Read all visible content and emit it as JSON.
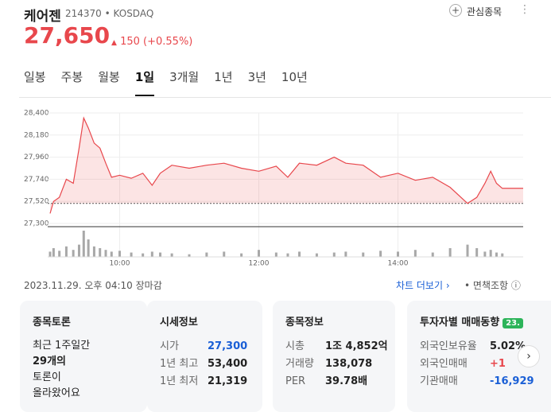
{
  "header": {
    "name": "케어젠",
    "code": "214370",
    "market": "KOSDAQ",
    "watch": "관심종목"
  },
  "price": {
    "current": "27,650",
    "change": "150",
    "change_pct": "(+0.55%)"
  },
  "tabs": [
    "일봉",
    "주봉",
    "월봉",
    "1일",
    "3개월",
    "1년",
    "3년",
    "10년"
  ],
  "active_tab": 3,
  "chart": {
    "type": "line",
    "x": [
      "09:00",
      "09:03",
      "09:08",
      "09:14",
      "09:20",
      "09:25",
      "09:29",
      "09:33",
      "09:38",
      "09:43",
      "09:48",
      "09:53",
      "10:00",
      "10:10",
      "10:20",
      "10:28",
      "10:35",
      "10:45",
      "11:00",
      "11:15",
      "11:30",
      "11:45",
      "12:00",
      "12:15",
      "12:25",
      "12:35",
      "12:50",
      "13:05",
      "13:15",
      "13:30",
      "13:45",
      "14:00",
      "14:15",
      "14:30",
      "14:45",
      "15:00",
      "15:08",
      "15:15",
      "15:20",
      "15:25",
      "15:30"
    ],
    "values": [
      27400,
      27520,
      27560,
      27740,
      27700,
      28050,
      28350,
      28250,
      28100,
      28050,
      27900,
      27760,
      27780,
      27750,
      27800,
      27680,
      27800,
      27880,
      27850,
      27880,
      27900,
      27850,
      27820,
      27870,
      27760,
      27900,
      27880,
      27960,
      27900,
      27880,
      27760,
      27800,
      27730,
      27760,
      27660,
      27500,
      27560,
      27700,
      27820,
      27700,
      27650
    ],
    "volume": [
      3000,
      5000,
      3500,
      6000,
      4000,
      7000,
      15000,
      10000,
      6000,
      5000,
      4000,
      3000,
      3500,
      2500,
      2000,
      3000,
      2500,
      2000,
      1500,
      2500,
      3000,
      2000,
      4000,
      2500,
      2000,
      3000,
      2000,
      2500,
      3000,
      2500,
      3500,
      3000,
      4000,
      2500,
      5000,
      7000,
      5000,
      3000,
      4000,
      2500,
      2000
    ],
    "reference": 27500,
    "color": "#e8474c",
    "xlim": [
      "09:00",
      "15:48"
    ],
    "xticks": [
      "10:00",
      "12:00",
      "14:00"
    ],
    "ylim": [
      27300,
      28400
    ],
    "yticks": [
      {
        "value": 27300,
        "label": "27,300"
      },
      {
        "value": 27520,
        "label": "27,520"
      },
      {
        "value": 27740,
        "label": "27,740"
      },
      {
        "value": 27960,
        "label": "27,960"
      },
      {
        "value": 28180,
        "label": "28,180"
      },
      {
        "value": 28400,
        "label": "28,400"
      }
    ],
    "grid": true
  },
  "status": {
    "time": "2023.11.29. 오후 04:10 장마감",
    "more": "차트 더보기",
    "disclaimer": "면책조항"
  },
  "cards": [
    {
      "title": "종목토론",
      "lines": [
        "최근 1주일간",
        "29개의",
        "토론이",
        "올라왔어요"
      ]
    },
    {
      "title": "시세정보",
      "rows": [
        [
          "시가",
          "27,300"
        ],
        [
          "1년 최고",
          "53,400"
        ],
        [
          "1년 최저",
          "21,319"
        ]
      ]
    },
    {
      "title": "종목정보",
      "rows": [
        [
          "시총",
          "1조 4,852억"
        ],
        [
          "거래량",
          "138,078"
        ],
        [
          "PER",
          "39.78배"
        ]
      ]
    },
    {
      "title": "투자자별 매매동향",
      "badge": "23.",
      "rows": [
        [
          "외국인보유율",
          "5.02%"
        ],
        [
          "외국인매매",
          "+1"
        ],
        [
          "기관매매",
          "-16,929"
        ]
      ]
    }
  ]
}
